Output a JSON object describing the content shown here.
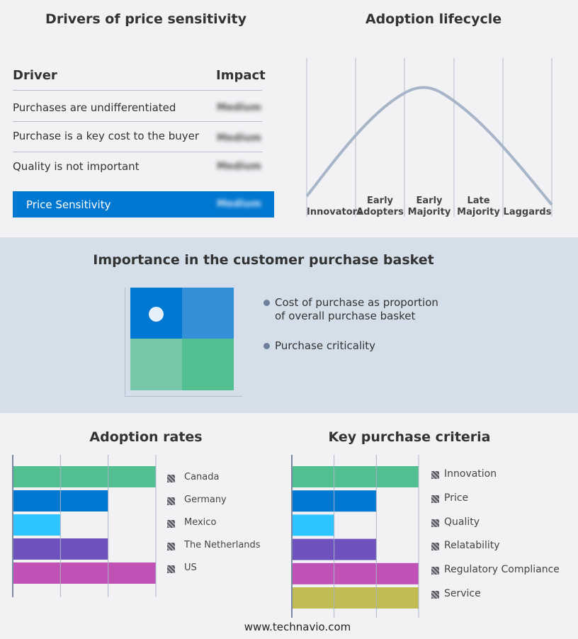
{
  "drivers": {
    "title": "Drivers of price sensitivity",
    "col_driver": "Driver",
    "col_impact": "Impact",
    "rows": [
      {
        "driver": "Purchases are undifferentiated",
        "impact": "Medium"
      },
      {
        "driver": "Purchase is a key cost to the buyer",
        "impact": "Medium"
      },
      {
        "driver": "Quality is not important",
        "impact": "Medium"
      }
    ],
    "summary": {
      "label": "Price Sensitivity",
      "impact": "Medium"
    },
    "accent": "#0077d0"
  },
  "lifecycle": {
    "title": "Adoption lifecycle",
    "stages": [
      [
        "Innovators"
      ],
      [
        "Early",
        "Adopters"
      ],
      [
        "Early",
        "Majority"
      ],
      [
        "Late",
        "Majority"
      ],
      [
        "Laggards"
      ]
    ]
  },
  "basket": {
    "title": "Importance in the customer purchase basket",
    "legend": [
      "Cost of purchase as proportion of overall purchase basket",
      "Purchase criticality"
    ],
    "colors": [
      "#0077d0",
      "#3390d8",
      "#76c6a8",
      "#52bf90"
    ]
  },
  "chart_data": [
    {
      "type": "bar",
      "title": "Adoption rates",
      "orientation": "horizontal",
      "categories": [
        "Canada",
        "Germany",
        "Mexico",
        "The Netherlands",
        "US"
      ],
      "values": [
        3,
        2,
        1,
        2,
        3
      ],
      "xlim": [
        0,
        3
      ],
      "grid": true,
      "legend": "right",
      "colors": [
        "#52bf90",
        "#0077d0",
        "#2ec4ff",
        "#6f52bd",
        "#c052b6"
      ]
    },
    {
      "type": "bar",
      "title": "Key purchase criteria",
      "orientation": "horizontal",
      "categories": [
        "Innovation",
        "Price",
        "Quality",
        "Relatability",
        "Regulatory Compliance",
        "Service"
      ],
      "values": [
        3,
        2,
        1,
        2,
        3,
        3
      ],
      "xlim": [
        0,
        3
      ],
      "grid": true,
      "legend": "right",
      "colors": [
        "#52bf90",
        "#0077d0",
        "#2ec4ff",
        "#6f52bd",
        "#c052b6",
        "#c0bb52"
      ]
    }
  ],
  "footer": "www.technavio.com"
}
